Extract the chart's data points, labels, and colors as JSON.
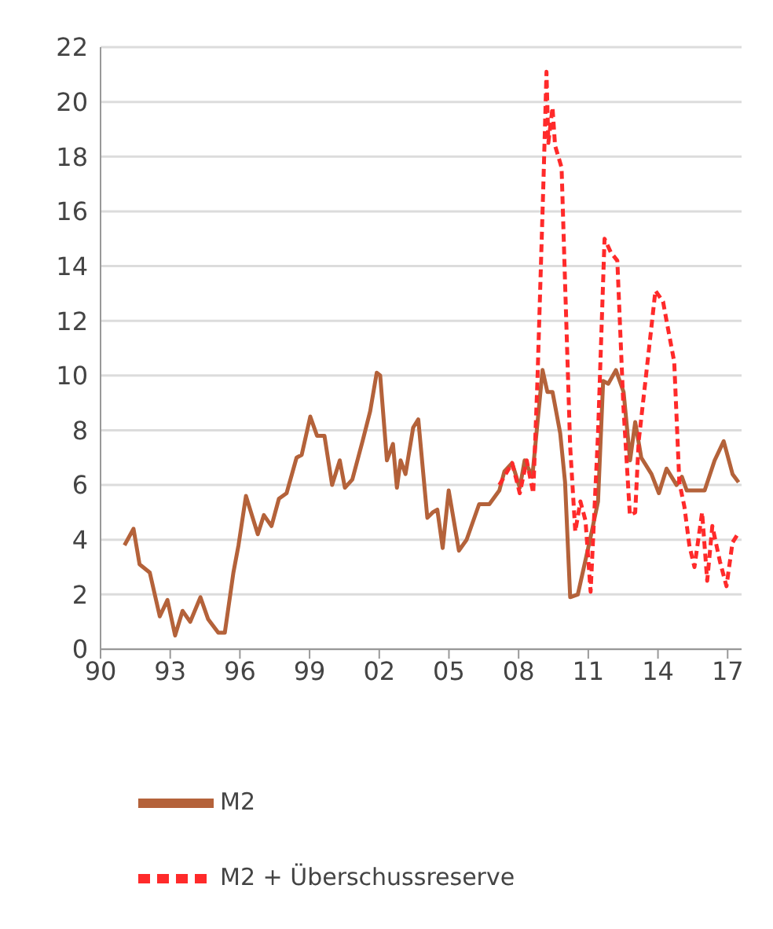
{
  "chart_data": {
    "type": "line",
    "xlim": [
      1990,
      2017.6
    ],
    "xticks": [
      {
        "value": 1990,
        "label": "90"
      },
      {
        "value": 1993,
        "label": "93"
      },
      {
        "value": 1996,
        "label": "96"
      },
      {
        "value": 1999,
        "label": "99"
      },
      {
        "value": 2002,
        "label": "02"
      },
      {
        "value": 2005,
        "label": "05"
      },
      {
        "value": 2008,
        "label": "08"
      },
      {
        "value": 2011,
        "label": "11"
      },
      {
        "value": 2014,
        "label": "14"
      },
      {
        "value": 2017,
        "label": "17"
      }
    ],
    "ylim": [
      0,
      22
    ],
    "yticks": [
      0,
      2,
      4,
      6,
      8,
      10,
      12,
      14,
      16,
      18,
      20,
      22
    ],
    "grid": "y",
    "legend": "bottom",
    "marker": "none",
    "series": [
      {
        "name": "M2",
        "color": "#b4623a",
        "line_style": "solid",
        "x": [
          1991.03,
          1991.42,
          1991.68,
          1992.12,
          1992.55,
          1992.88,
          1993.21,
          1993.53,
          1993.86,
          1994.3,
          1994.63,
          1995.07,
          1995.35,
          1995.72,
          1995.94,
          1996.26,
          1996.77,
          1997.03,
          1997.36,
          1997.68,
          1998.01,
          1998.44,
          1998.66,
          1999.03,
          1999.32,
          1999.64,
          1999.97,
          2000.3,
          2000.52,
          2000.84,
          2001.28,
          2001.61,
          2001.89,
          2002.04,
          2002.33,
          2002.59,
          2002.76,
          2002.92,
          2003.13,
          2003.46,
          2003.68,
          2004.07,
          2004.3,
          2004.5,
          2004.73,
          2004.99,
          2005.43,
          2005.76,
          2006.3,
          2006.74,
          2007.17,
          2007.39,
          2007.72,
          2008.05,
          2008.26,
          2008.59,
          2009.03,
          2009.24,
          2009.46,
          2009.79,
          2010.0,
          2010.22,
          2010.55,
          2011.1,
          2011.42,
          2011.64,
          2011.86,
          2012.19,
          2012.52,
          2012.8,
          2013.02,
          2013.28,
          2013.72,
          2014.04,
          2014.37,
          2014.8,
          2015.03,
          2015.24,
          2015.68,
          2016.01,
          2016.44,
          2016.83,
          2017.21,
          2017.47
        ],
        "values": [
          3.8,
          4.4,
          3.1,
          2.8,
          1.2,
          1.8,
          0.5,
          1.4,
          1.0,
          1.9,
          1.1,
          0.6,
          0.6,
          2.8,
          3.8,
          5.6,
          4.2,
          4.9,
          4.5,
          5.5,
          5.7,
          7.0,
          7.1,
          8.5,
          7.8,
          7.8,
          6.0,
          6.9,
          5.9,
          6.2,
          7.6,
          8.7,
          10.1,
          10.0,
          6.9,
          7.5,
          5.9,
          6.9,
          6.4,
          8.1,
          8.4,
          4.8,
          5.0,
          5.1,
          3.7,
          5.8,
          3.6,
          4.0,
          5.3,
          5.3,
          5.8,
          6.5,
          6.8,
          5.9,
          6.9,
          6.3,
          10.2,
          9.4,
          9.4,
          7.9,
          6.1,
          1.9,
          2.0,
          4.1,
          5.4,
          9.8,
          9.7,
          10.2,
          9.4,
          6.9,
          8.3,
          7.0,
          6.4,
          5.7,
          6.6,
          6.0,
          6.3,
          5.8,
          5.8,
          5.8,
          6.9,
          7.6,
          6.4,
          6.1
        ]
      },
      {
        "name": "M2 + Überschussreserve",
        "color": "#ff2a2a",
        "line_style": "dashed",
        "x": [
          2007.17,
          2007.72,
          2008.05,
          2008.35,
          2008.63,
          2008.81,
          2009.07,
          2009.2,
          2009.28,
          2009.46,
          2009.57,
          2009.85,
          2010.0,
          2010.22,
          2010.44,
          2010.66,
          2010.88,
          2011.1,
          2011.42,
          2011.7,
          2011.97,
          2012.25,
          2012.51,
          2012.79,
          2013.02,
          2013.17,
          2013.5,
          2013.89,
          2014.22,
          2014.37,
          2014.7,
          2014.92,
          2015.14,
          2015.35,
          2015.57,
          2015.9,
          2016.12,
          2016.34,
          2016.67,
          2016.95,
          2017.21,
          2017.43
        ],
        "values": [
          6.0,
          6.8,
          5.7,
          6.9,
          5.7,
          9.8,
          17.1,
          21.1,
          18.5,
          19.8,
          18.4,
          17.6,
          13.4,
          7.4,
          4.3,
          5.4,
          4.7,
          2.1,
          7.9,
          15.0,
          14.5,
          14.2,
          8.9,
          4.9,
          5.0,
          7.6,
          10.1,
          13.1,
          12.7,
          12.0,
          10.5,
          6.1,
          5.2,
          3.8,
          3.0,
          5.0,
          2.5,
          4.5,
          3.2,
          2.3,
          3.9,
          4.2
        ]
      }
    ]
  }
}
